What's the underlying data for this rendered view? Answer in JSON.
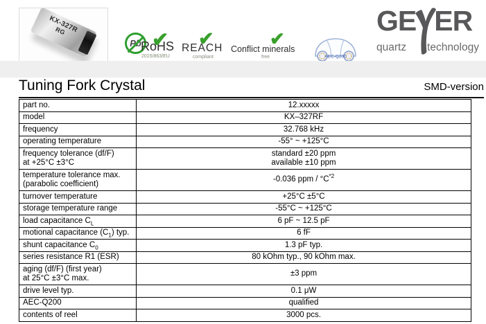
{
  "header": {
    "product_image": {
      "line1": "KX-327R",
      "line2": "RG"
    },
    "badges": {
      "pb": "Pb",
      "rohs": {
        "label": "RoHS",
        "sub": "2015/863/EU"
      },
      "reach": {
        "label": "REACH",
        "sub": "compliant"
      },
      "conflict": {
        "label": "Conflict minerals",
        "sub": "free"
      },
      "aec_car": "AEC-Q200"
    },
    "brand": {
      "ge": "GE",
      "er": "ER",
      "tag_left": "quartz",
      "tag_right": "technology"
    }
  },
  "icons": {
    "check": "✔"
  },
  "colors": {
    "check": "#3aa02c",
    "brand": "#58585a",
    "band": "#efefef",
    "car_blue": "#9db3d6"
  },
  "title": {
    "main": "Tuning Fork Crystal",
    "right": "SMD-version"
  },
  "table": {
    "rows": [
      {
        "label": [
          [
            {
              "t": "part no."
            }
          ]
        ],
        "value": [
          [
            {
              "t": "12.xxxxx"
            }
          ]
        ]
      },
      {
        "label": [
          [
            {
              "t": "model"
            }
          ]
        ],
        "value": [
          [
            {
              "t": "KX–327RF"
            }
          ]
        ]
      },
      {
        "label": [
          [
            {
              "t": "frequency"
            }
          ]
        ],
        "value": [
          [
            {
              "t": "32.768 kHz"
            }
          ]
        ]
      },
      {
        "label": [
          [
            {
              "t": "operating temperature"
            }
          ]
        ],
        "value": [
          [
            {
              "t": "-55° ~ +125°C"
            }
          ]
        ]
      },
      {
        "label": [
          [
            {
              "t": "frequency tolerance (df/F)"
            }
          ],
          [
            {
              "t": "at +25°C ±3°C"
            }
          ]
        ],
        "value": [
          [
            {
              "t": "standard ±20 ppm"
            }
          ],
          [
            {
              "t": "available ±10 ppm"
            }
          ]
        ]
      },
      {
        "label": [
          [
            {
              "t": "temperature tolerance max."
            }
          ],
          [
            {
              "t": "(parabolic coefficient)"
            }
          ]
        ],
        "value": [
          [
            {
              "t": "-0.036 ppm / °C"
            },
            {
              "t": "*2",
              "s": "sup"
            }
          ]
        ]
      },
      {
        "label": [
          [
            {
              "t": "turnover temperature"
            }
          ]
        ],
        "value": [
          [
            {
              "t": "+25°C ±5°C"
            }
          ]
        ]
      },
      {
        "label": [
          [
            {
              "t": "storage temperature range"
            }
          ]
        ],
        "value": [
          [
            {
              "t": "-55°C ~ +125°C"
            }
          ]
        ]
      },
      {
        "label": [
          [
            {
              "t": "load capacitance C"
            },
            {
              "t": "L",
              "s": "sub"
            }
          ]
        ],
        "value": [
          [
            {
              "t": "6 pF ~ 12.5 pF"
            }
          ]
        ]
      },
      {
        "label": [
          [
            {
              "t": "motional capacitance (C"
            },
            {
              "t": "1",
              "s": "sub"
            },
            {
              "t": ") typ."
            }
          ]
        ],
        "value": [
          [
            {
              "t": "6 fF"
            }
          ]
        ]
      },
      {
        "label": [
          [
            {
              "t": "shunt capacitance C"
            },
            {
              "t": "0",
              "s": "sub"
            }
          ]
        ],
        "value": [
          [
            {
              "t": "1.3 pF typ."
            }
          ]
        ]
      },
      {
        "label": [
          [
            {
              "t": "series resistance R1 (ESR)"
            }
          ]
        ],
        "value": [
          [
            {
              "t": "80 kOhm typ., 90 kOhm max."
            }
          ]
        ]
      },
      {
        "label": [
          [
            {
              "t": "aging (df/F) (first year)"
            }
          ],
          [
            {
              "t": "at 25°C ±3°C max."
            }
          ]
        ],
        "value": [
          [
            {
              "t": "±3 ppm"
            }
          ]
        ]
      },
      {
        "label": [
          [
            {
              "t": "drive level typ."
            }
          ]
        ],
        "value": [
          [
            {
              "t": "0.1 μW"
            }
          ]
        ]
      },
      {
        "label": [
          [
            {
              "t": "AEC-Q200"
            }
          ]
        ],
        "value": [
          [
            {
              "t": "qualified"
            }
          ]
        ]
      },
      {
        "label": [
          [
            {
              "t": "contents of reel"
            }
          ]
        ],
        "value": [
          [
            {
              "t": "3000 pcs."
            }
          ]
        ]
      }
    ]
  }
}
